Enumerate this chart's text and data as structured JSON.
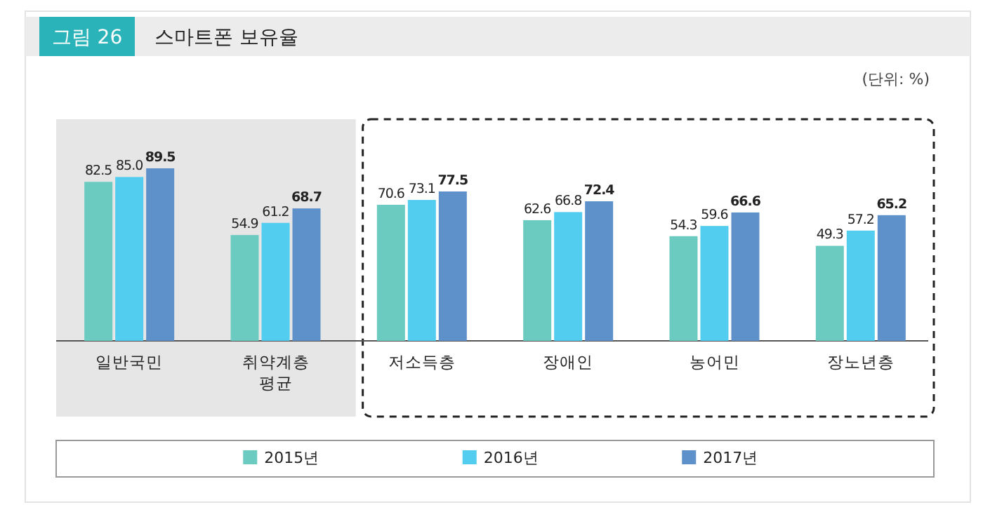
{
  "chart_data": {
    "type": "bar",
    "title": "스마트폰 보유율",
    "annotations": [
      "그림 26",
      "(단위: %)"
    ],
    "categories": [
      "일반국민",
      "취약계층 평균",
      "저소득층",
      "장애인",
      "농어민",
      "장노년층"
    ],
    "series": [
      {
        "name": "2015년",
        "color": "#6ccbc0",
        "values": [
          82.5,
          54.9,
          70.6,
          62.6,
          54.3,
          49.3
        ],
        "value_labels": [
          "82.5",
          "54.9",
          "70.6",
          "62.6",
          "54.3",
          "49.3"
        ]
      },
      {
        "name": "2016년",
        "color": "#52cdf0",
        "values": [
          85.0,
          61.2,
          73.1,
          66.8,
          59.6,
          57.2
        ],
        "value_labels": [
          "85.0",
          "61.2",
          "73.1",
          "66.8",
          "59.6",
          "57.2"
        ]
      },
      {
        "name": "2017년",
        "color": "#5e90ca",
        "values": [
          89.5,
          68.7,
          77.5,
          72.4,
          66.6,
          65.2
        ],
        "value_labels": [
          "89.5",
          "68.7",
          "77.5",
          "72.4",
          "66.6",
          "65.2"
        ]
      }
    ],
    "legend": "bottom"
  }
}
